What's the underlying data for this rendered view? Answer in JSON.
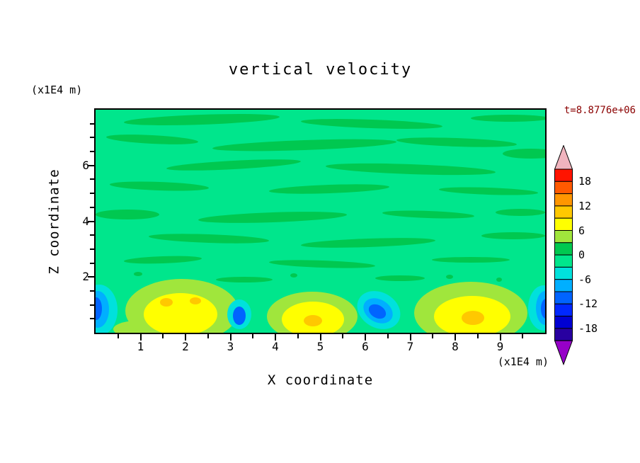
{
  "header": {
    "title": "vertical velocity",
    "time_label": "t=8.8776e+06",
    "time_color": "#8b0000"
  },
  "axes": {
    "x_title": "X coordinate",
    "x_unit": "(x1E4 m)",
    "y_title": "Z coordinate",
    "y_unit": "(x1E4 m)",
    "x_tick_labels": [
      "1",
      "2",
      "3",
      "4",
      "5",
      "6",
      "7",
      "8",
      "9"
    ],
    "y_tick_labels": [
      "2",
      "4",
      "6"
    ]
  },
  "colorbar": {
    "tick_labels": [
      "18",
      "12",
      "6",
      "0",
      "-6",
      "-12",
      "-18"
    ],
    "top_arrow_color": "#f0b4be",
    "bottom_arrow_color": "#9600c8",
    "segment_colors_top_to_bottom": [
      "#ff1400",
      "#ff5a00",
      "#ff9600",
      "#ffc800",
      "#ffff00",
      "#a0e63c",
      "#00c850",
      "#00e68c",
      "#00e1dc",
      "#00afff",
      "#0064ff",
      "#0028ff",
      "#0000d2",
      "#2800a0"
    ]
  },
  "chart_data": {
    "type": "heatmap",
    "title": "vertical velocity",
    "xlabel": "X coordinate (x1E4 m)",
    "ylabel": "Z coordinate (x1E4 m)",
    "xlim": [
      0,
      10
    ],
    "ylim": [
      0,
      8
    ],
    "x_ticks": [
      1,
      2,
      3,
      4,
      5,
      6,
      7,
      8,
      9
    ],
    "y_ticks": [
      2,
      4,
      6
    ],
    "annotation": "t=8.8776e+06",
    "colorbar": {
      "min": -21,
      "max": 21,
      "contour_interval": 3,
      "labeled_levels": [
        18,
        12,
        6,
        0,
        -6,
        -12,
        -18
      ]
    },
    "field_description": "Interior is dominated by weak vertical velocity (-3 to +3) shown as mottled green horizontal streaks; alternating strong updraft (yellow/orange, +6 to +12) and downdraft (cyan/blue, -6 to -15) cells hug the lower boundary below z = 2e4 m.",
    "updraft_cells": [
      {
        "x": 1.9,
        "z": 0.7,
        "peak_value": 9
      },
      {
        "x": 4.8,
        "z": 0.5,
        "peak_value": 10
      },
      {
        "x": 8.4,
        "z": 0.6,
        "peak_value": 10
      }
    ],
    "downdraft_cells": [
      {
        "x": 0.05,
        "z": 1.0,
        "peak_value": -9
      },
      {
        "x": 3.2,
        "z": 0.8,
        "peak_value": -9
      },
      {
        "x": 6.3,
        "z": 0.9,
        "peak_value": -9
      },
      {
        "x": 9.95,
        "z": 0.9,
        "peak_value": -9
      }
    ]
  },
  "render": {
    "field_bg": "#00e68c",
    "blobs": [
      [
        "#00c850",
        150,
        14,
        110,
        7,
        -2
      ],
      [
        "#00c850",
        390,
        20,
        100,
        6,
        2
      ],
      [
        "#00c850",
        585,
        12,
        55,
        5,
        0
      ],
      [
        "#00c850",
        80,
        42,
        65,
        6,
        3
      ],
      [
        "#00c850",
        295,
        50,
        130,
        7,
        -2
      ],
      [
        "#00c850",
        510,
        46,
        85,
        6,
        2
      ],
      [
        "#00c850",
        615,
        62,
        40,
        7,
        0
      ],
      [
        "#00c850",
        195,
        78,
        95,
        6,
        -3
      ],
      [
        "#00c850",
        445,
        84,
        120,
        7,
        2
      ],
      [
        "#00c850",
        90,
        108,
        70,
        6,
        2
      ],
      [
        "#00c850",
        330,
        112,
        85,
        6,
        -2
      ],
      [
        "#00c850",
        555,
        115,
        70,
        5,
        2
      ],
      [
        "#00c850",
        45,
        148,
        45,
        7,
        0
      ],
      [
        "#00c850",
        250,
        152,
        105,
        7,
        -2
      ],
      [
        "#00c850",
        470,
        148,
        65,
        5,
        2
      ],
      [
        "#00c850",
        600,
        145,
        35,
        5,
        0
      ],
      [
        "#00c850",
        160,
        182,
        85,
        6,
        2
      ],
      [
        "#00c850",
        385,
        188,
        95,
        6,
        -2
      ],
      [
        "#00c850",
        590,
        178,
        45,
        5,
        0
      ],
      [
        "#00c850",
        95,
        212,
        55,
        5,
        -2
      ],
      [
        "#00c850",
        320,
        218,
        75,
        5,
        2
      ],
      [
        "#00c850",
        530,
        212,
        55,
        4,
        0
      ],
      [
        "#00c850",
        210,
        240,
        40,
        4,
        0
      ],
      [
        "#00c850",
        430,
        238,
        35,
        4,
        0
      ],
      [
        "#00c850",
        60,
        232,
        6,
        3,
        0
      ],
      [
        "#00c850",
        280,
        234,
        5,
        3,
        0
      ],
      [
        "#00c850",
        500,
        236,
        5,
        3,
        0
      ],
      [
        "#00c850",
        570,
        240,
        4,
        3,
        0
      ],
      [
        "#a0e63c",
        60,
        310,
        35,
        12,
        0
      ],
      [
        "#a0e63c",
        122,
        284,
        80,
        45,
        0
      ],
      [
        "#ffff00",
        120,
        289,
        52,
        30,
        0
      ],
      [
        "#ffc800",
        100,
        272,
        9,
        6,
        0
      ],
      [
        "#ffc800",
        141,
        270,
        8,
        5,
        0
      ],
      [
        "#00e1dc",
        203,
        289,
        17,
        21,
        0
      ],
      [
        "#0064ff",
        203,
        291,
        9,
        13,
        0
      ],
      [
        "#a0e63c",
        306,
        292,
        64,
        35,
        0
      ],
      [
        "#ffff00",
        307,
        296,
        44,
        25,
        0
      ],
      [
        "#ffc800",
        307,
        298,
        13,
        8,
        0
      ],
      [
        "#00e1dc",
        400,
        283,
        32,
        25,
        30
      ],
      [
        "#00afff",
        399,
        284,
        22,
        16,
        30
      ],
      [
        "#0064ff",
        398,
        285,
        13,
        9,
        30
      ],
      [
        "#a0e63c",
        530,
        287,
        80,
        44,
        0
      ],
      [
        "#ffff00",
        532,
        292,
        54,
        29,
        0
      ],
      [
        "#ffc800",
        533,
        294,
        16,
        10,
        0
      ],
      [
        "#00e1dc",
        633,
        280,
        22,
        32,
        0
      ],
      [
        "#00afff",
        635,
        280,
        13,
        24,
        0
      ],
      [
        "#0064ff",
        636,
        281,
        7,
        14,
        0
      ],
      [
        "#00e1dc",
        5,
        283,
        26,
        36,
        0
      ],
      [
        "#00afff",
        3,
        282,
        16,
        26,
        0
      ],
      [
        "#0064ff",
        1,
        281,
        8,
        16,
        0
      ]
    ]
  }
}
